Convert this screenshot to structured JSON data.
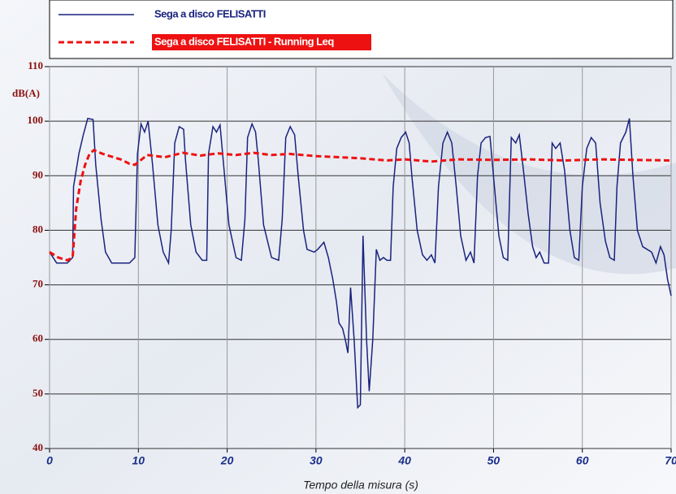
{
  "chart_data": {
    "type": "line",
    "y_label": "dB(A)",
    "x_label": "Tempo della misura (s)",
    "xlim": [
      0,
      70
    ],
    "xticks": [
      0,
      10,
      20,
      30,
      40,
      50,
      60,
      70
    ],
    "ylim": [
      40,
      110
    ],
    "yticks": [
      40,
      50,
      60,
      70,
      80,
      90,
      100,
      110
    ],
    "grid": true,
    "series": [
      {
        "name": "Sega a disco FELISATTI",
        "color": "#1a237e",
        "dash": false,
        "x": [
          0,
          0.8,
          2.0,
          2.6,
          2.7,
          3.3,
          3.8,
          4.3,
          4.9,
          5.2,
          5.8,
          6.3,
          7.0,
          8,
          9,
          9.6,
          9.9,
          10.3,
          10.7,
          11.1,
          11.6,
          12.2,
          12.8,
          13.4,
          13.7,
          14.1,
          14.6,
          15.1,
          15.3,
          15.9,
          16.5,
          17.2,
          17.7,
          17.9,
          18.4,
          18.8,
          19.2,
          19.6,
          20.2,
          21.0,
          21.6,
          22,
          22.3,
          22.8,
          23.2,
          23.5,
          24.1,
          25.0,
          25.8,
          26.2,
          26.6,
          27.1,
          27.6,
          28,
          28.6,
          29,
          29.8,
          30.2,
          30.9,
          31.4,
          31.9,
          32.3,
          32.6,
          33,
          33.3,
          33.6,
          33.9,
          34.3,
          34.7,
          35.0,
          35.3,
          35.7,
          36.0,
          36.4,
          36.8,
          37.2,
          37.6,
          38,
          38.4,
          38.7,
          39.1,
          39.6,
          40.1,
          40.5,
          40.8,
          41.4,
          42,
          42.5,
          43,
          43.4,
          43.8,
          44.3,
          44.8,
          45.3,
          45.8,
          46.3,
          46.9,
          47.4,
          47.8,
          48.2,
          48.6,
          49.1,
          49.6,
          50.1,
          50.6,
          51.1,
          51.6,
          52,
          52.5,
          52.9,
          53.3,
          53.9,
          54.4,
          54.8,
          55.2,
          55.7,
          56.2,
          56.6,
          57,
          57.5,
          58,
          58.6,
          59.1,
          59.6,
          60,
          60.5,
          61,
          61.5,
          62,
          62.6,
          63.1,
          63.6,
          63.9,
          64.3,
          64.9,
          65.3,
          65.7,
          66.2,
          66.8,
          67.3,
          67.8,
          68.3,
          68.8,
          69.2,
          69.6,
          70
        ],
        "values": [
          76,
          74,
          74,
          75,
          88,
          94,
          97.5,
          100.5,
          100.3,
          92,
          82,
          76,
          74,
          74,
          74,
          75,
          94,
          99.5,
          98,
          100,
          92,
          81,
          76,
          74,
          80,
          96,
          99,
          98.5,
          93,
          81,
          76,
          74.5,
          74.5,
          94,
          99,
          98,
          99.3,
          92,
          81,
          75,
          74.5,
          82,
          97,
          99.5,
          98,
          93,
          81,
          75,
          74.5,
          82,
          97,
          99,
          97.5,
          90,
          80,
          76.5,
          76,
          76.5,
          77.8,
          75,
          71,
          67,
          63,
          62,
          60,
          57.5,
          69.5,
          60,
          47.5,
          48,
          79,
          60,
          50.5,
          60,
          76.5,
          74.5,
          75,
          74.5,
          74.5,
          88,
          95,
          97,
          98,
          96,
          90,
          80,
          75.5,
          74.5,
          75.5,
          74,
          88,
          96,
          98,
          96,
          88,
          79,
          74.5,
          76,
          74,
          90,
          96,
          97,
          97.2,
          88,
          79,
          75,
          74.5,
          97,
          96,
          97.5,
          92,
          83,
          77,
          75,
          76,
          74,
          74,
          96,
          95,
          96,
          91,
          80,
          75,
          74.5,
          88,
          95,
          97,
          96,
          85,
          78,
          75,
          74.5,
          88,
          96,
          98,
          100.5,
          90,
          80,
          77,
          76.5,
          76,
          74,
          77,
          75.5,
          71,
          68
        ]
      },
      {
        "name": "Sega a disco FELISATTI - Running Leq",
        "color": "#ee1111",
        "dash": true,
        "x": [
          0,
          1,
          2,
          2.6,
          3,
          3.5,
          4,
          4.5,
          5,
          6,
          7,
          8,
          9,
          9.6,
          10,
          11,
          13,
          15,
          17,
          19,
          21,
          23,
          25,
          27,
          30,
          35,
          38,
          40,
          43,
          46,
          50,
          54,
          58,
          62,
          66,
          70
        ],
        "values": [
          76,
          75,
          74.5,
          75,
          84,
          89,
          92,
          94,
          94.7,
          94,
          93.5,
          93,
          92.2,
          92,
          92.5,
          93.8,
          93.4,
          94.2,
          93.7,
          94.1,
          93.8,
          94.2,
          93.8,
          94,
          93.6,
          93.2,
          92.8,
          93,
          92.6,
          93,
          92.9,
          93,
          92.8,
          93,
          92.9,
          92.8
        ]
      }
    ]
  }
}
